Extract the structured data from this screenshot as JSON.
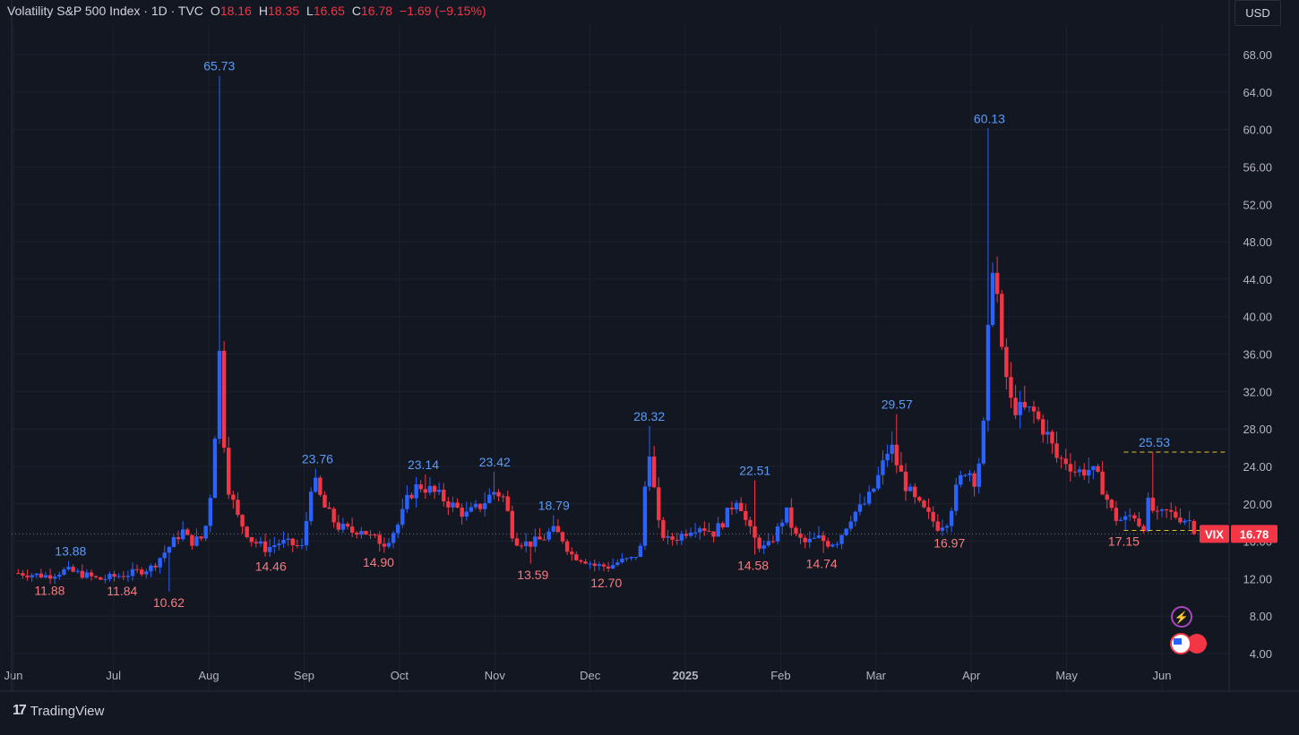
{
  "header": {
    "symbol_name": "Volatility S&P 500 Index · 1D · TVC",
    "o_label": "O",
    "o_value": "18.16",
    "h_label": "H",
    "h_value": "18.35",
    "l_label": "L",
    "l_value": "16.65",
    "c_label": "C",
    "c_value": "16.78",
    "change": "−1.69 (−9.15%)"
  },
  "currency_button": "USD",
  "footer": {
    "brand": "TradingView",
    "logo": "17"
  },
  "colors": {
    "bg": "#131722",
    "grid": "#1e222d",
    "up": "#2962ff",
    "down": "#f23645",
    "text": "#d1d4dc",
    "up_label": "#5b9cf6",
    "down_label": "#f77c80"
  },
  "last_price": {
    "symbol": "VIX",
    "value": "16.78",
    "price": 16.78
  },
  "chart_data": {
    "type": "candlestick",
    "y_axis": {
      "min": 2.0,
      "max": 72.0,
      "ticks": [
        "68.00",
        "64.00",
        "60.00",
        "56.00",
        "52.00",
        "48.00",
        "44.00",
        "40.00",
        "36.00",
        "32.00",
        "28.00",
        "24.00",
        "20.00",
        "16.00",
        "12.00",
        "8.00",
        "4.00"
      ],
      "side": "right"
    },
    "x_axis": {
      "labels": [
        {
          "text": "Jun",
          "m": -0.05,
          "bold": false
        },
        {
          "text": "Jul",
          "m": 1,
          "bold": false
        },
        {
          "text": "Aug",
          "m": 2,
          "bold": false
        },
        {
          "text": "Sep",
          "m": 3,
          "bold": false
        },
        {
          "text": "Oct",
          "m": 4,
          "bold": false
        },
        {
          "text": "Nov",
          "m": 5,
          "bold": false
        },
        {
          "text": "Dec",
          "m": 6,
          "bold": false
        },
        {
          "text": "2025",
          "m": 7,
          "bold": true
        },
        {
          "text": "Feb",
          "m": 8,
          "bold": false
        },
        {
          "text": "Mar",
          "m": 9,
          "bold": false
        },
        {
          "text": "Apr",
          "m": 10,
          "bold": false
        },
        {
          "text": "May",
          "m": 11,
          "bold": false
        },
        {
          "text": "Jun",
          "m": 12,
          "bold": false
        }
      ],
      "range": [
        0,
        12.85
      ]
    },
    "grid": true,
    "close_series": [
      [
        0.0,
        12.6
      ],
      [
        0.3,
        12.3
      ],
      [
        0.5,
        12.9
      ],
      [
        0.7,
        12.4
      ],
      [
        0.85,
        11.9
      ],
      [
        1.0,
        12.2
      ],
      [
        1.2,
        12.6
      ],
      [
        1.4,
        13.2
      ],
      [
        1.55,
        15.0
      ],
      [
        1.65,
        16.2
      ],
      [
        1.72,
        17.2
      ],
      [
        1.8,
        15.9
      ],
      [
        1.95,
        16.4
      ],
      [
        2.05,
        23.4
      ],
      [
        2.1,
        38.6
      ],
      [
        2.15,
        27.9
      ],
      [
        2.2,
        22.0
      ],
      [
        2.3,
        18.6
      ],
      [
        2.45,
        16.1
      ],
      [
        2.6,
        15.2
      ],
      [
        2.75,
        15.9
      ],
      [
        2.9,
        15.6
      ],
      [
        3.0,
        15.2
      ],
      [
        3.05,
        21.5
      ],
      [
        3.1,
        22.6
      ],
      [
        3.2,
        19.8
      ],
      [
        3.35,
        17.6
      ],
      [
        3.5,
        17.0
      ],
      [
        3.6,
        17.4
      ],
      [
        3.7,
        16.4
      ],
      [
        3.85,
        15.8
      ],
      [
        4.0,
        18.0
      ],
      [
        4.1,
        20.9
      ],
      [
        4.2,
        22.0
      ],
      [
        4.3,
        21.6
      ],
      [
        4.45,
        20.6
      ],
      [
        4.6,
        19.5
      ],
      [
        4.7,
        18.8
      ],
      [
        4.85,
        19.8
      ],
      [
        5.0,
        21.4
      ],
      [
        5.1,
        20.6
      ],
      [
        5.2,
        16.2
      ],
      [
        5.35,
        15.7
      ],
      [
        5.5,
        16.2
      ],
      [
        5.6,
        17.2
      ],
      [
        5.7,
        16.5
      ],
      [
        5.8,
        14.6
      ],
      [
        5.95,
        14.0
      ],
      [
        6.05,
        13.4
      ],
      [
        6.2,
        13.3
      ],
      [
        6.3,
        13.8
      ],
      [
        6.45,
        14.1
      ],
      [
        6.55,
        15.6
      ],
      [
        6.6,
        27.6
      ],
      [
        6.65,
        24.1
      ],
      [
        6.7,
        18.1
      ],
      [
        6.8,
        16.0
      ],
      [
        6.95,
        16.6
      ],
      [
        7.05,
        17.4
      ],
      [
        7.15,
        17.7
      ],
      [
        7.3,
        16.9
      ],
      [
        7.4,
        18.2
      ],
      [
        7.55,
        20.9
      ],
      [
        7.65,
        17.6
      ],
      [
        7.75,
        15.8
      ],
      [
        7.85,
        15.1
      ],
      [
        8.0,
        17.8
      ],
      [
        8.05,
        19.4
      ],
      [
        8.15,
        16.6
      ],
      [
        8.25,
        15.8
      ],
      [
        8.4,
        16.3
      ],
      [
        8.5,
        15.8
      ],
      [
        8.6,
        16.1
      ],
      [
        8.75,
        18.9
      ],
      [
        8.85,
        19.6
      ],
      [
        8.95,
        21.0
      ],
      [
        9.05,
        23.5
      ],
      [
        9.15,
        26.5
      ],
      [
        9.2,
        24.7
      ],
      [
        9.3,
        22.2
      ],
      [
        9.4,
        20.4
      ],
      [
        9.55,
        18.7
      ],
      [
        9.65,
        17.6
      ],
      [
        9.75,
        18.3
      ],
      [
        9.85,
        21.8
      ],
      [
        9.95,
        24.0
      ],
      [
        10.05,
        22.3
      ],
      [
        10.15,
        29.8
      ],
      [
        10.2,
        45.3
      ],
      [
        10.25,
        46.9
      ],
      [
        10.3,
        36.2
      ],
      [
        10.35,
        35.0
      ],
      [
        10.4,
        30.9
      ],
      [
        10.5,
        30.0
      ],
      [
        10.65,
        29.8
      ],
      [
        10.8,
        27.3
      ],
      [
        10.9,
        24.8
      ],
      [
        11.0,
        24.6
      ],
      [
        11.1,
        23.4
      ],
      [
        11.25,
        23.7
      ],
      [
        11.35,
        22.4
      ],
      [
        11.5,
        18.5
      ],
      [
        11.6,
        18.2
      ],
      [
        11.7,
        19.0
      ],
      [
        11.8,
        17.2
      ],
      [
        11.85,
        20.1
      ],
      [
        11.95,
        18.6
      ],
      [
        12.05,
        19.1
      ],
      [
        12.2,
        18.5
      ],
      [
        12.3,
        18.2
      ],
      [
        12.35,
        16.78
      ]
    ],
    "highs": [
      {
        "m": 0.55,
        "v": 13.88
      },
      {
        "m": 2.11,
        "v": 65.73
      },
      {
        "m": 3.14,
        "v": 23.76
      },
      {
        "m": 4.25,
        "v": 23.14
      },
      {
        "m": 5.0,
        "v": 23.42
      },
      {
        "m": 5.62,
        "v": 18.79
      },
      {
        "m": 6.62,
        "v": 28.32
      },
      {
        "m": 7.73,
        "v": 22.51
      },
      {
        "m": 9.22,
        "v": 29.57
      },
      {
        "m": 10.19,
        "v": 60.13
      },
      {
        "m": 11.92,
        "v": 25.53
      }
    ],
    "lows": [
      {
        "m": 0.33,
        "v": 11.88
      },
      {
        "m": 1.09,
        "v": 11.84
      },
      {
        "m": 1.58,
        "v": 10.62
      },
      {
        "m": 2.65,
        "v": 14.46
      },
      {
        "m": 3.78,
        "v": 14.9
      },
      {
        "m": 5.4,
        "v": 13.59
      },
      {
        "m": 6.17,
        "v": 12.7
      },
      {
        "m": 7.71,
        "v": 14.58
      },
      {
        "m": 8.43,
        "v": 14.74
      },
      {
        "m": 9.77,
        "v": 16.97
      },
      {
        "m": 11.6,
        "v": 17.15
      }
    ],
    "high_labels": [
      "13.88",
      "65.73",
      "23.76",
      "23.14",
      "23.42",
      "18.79",
      "28.32",
      "22.51",
      "29.57",
      "60.13",
      "25.53"
    ],
    "low_labels": [
      "11.88",
      "11.84",
      "10.62",
      "14.46",
      "14.90",
      "13.59",
      "12.70",
      "14.58",
      "14.74",
      "16.97",
      "17.15"
    ],
    "ref_lines": [
      {
        "from_m": 11.6,
        "to_m": 12.7,
        "v": 25.53
      },
      {
        "from_m": 11.6,
        "to_m": 12.7,
        "v": 17.15
      }
    ]
  }
}
